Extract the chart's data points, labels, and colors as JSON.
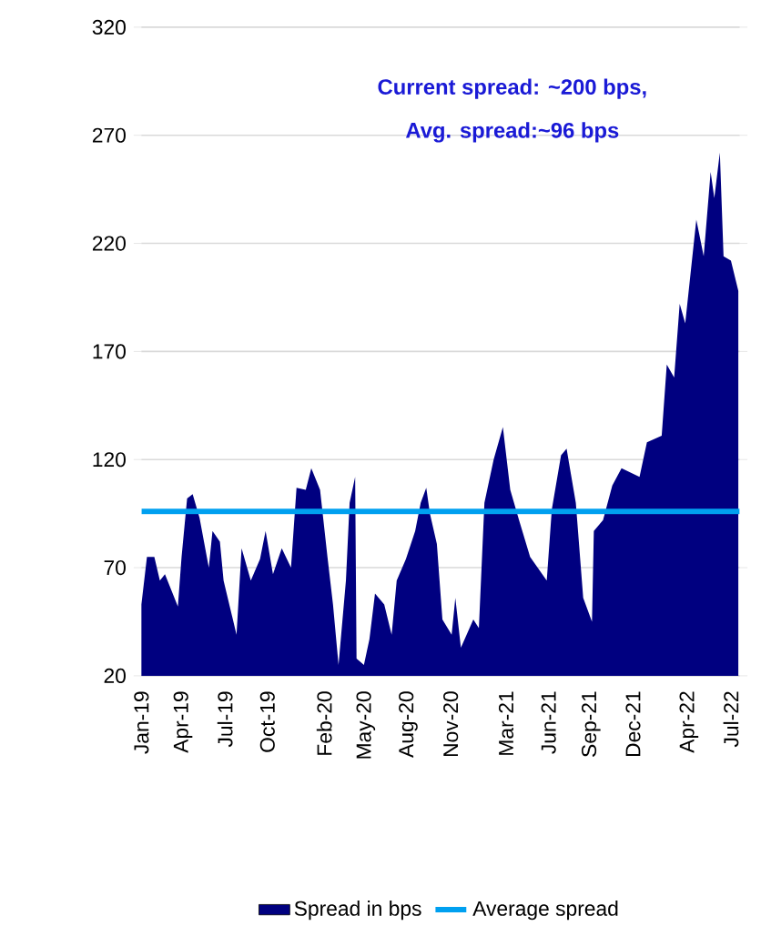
{
  "chart_data": {
    "type": "area",
    "x": [
      "2019-01-01",
      "2019-01-13",
      "2019-01-29",
      "2019-02-10",
      "2019-02-21",
      "2019-03-21",
      "2019-03-29",
      "2019-04-10",
      "2019-04-22",
      "2019-05-07",
      "2019-05-27",
      "2019-06-04",
      "2019-06-20",
      "2019-06-28",
      "2019-07-26",
      "2019-08-06",
      "2019-08-26",
      "2019-09-15",
      "2019-09-27",
      "2019-10-13",
      "2019-11-01",
      "2019-11-21",
      "2019-12-03",
      "2019-12-23",
      "2020-01-04",
      "2020-01-23",
      "2020-02-08",
      "2020-02-20",
      "2020-03-03",
      "2020-03-19",
      "2020-03-27",
      "2020-04-08",
      "2020-04-11",
      "2020-04-27",
      "2020-05-09",
      "2020-05-21",
      "2020-06-10",
      "2020-06-26",
      "2020-07-07",
      "2020-07-27",
      "2020-08-16",
      "2020-08-28",
      "2020-09-09",
      "2020-09-17",
      "2020-10-02",
      "2020-10-14",
      "2020-11-03",
      "2020-11-11",
      "2020-11-23",
      "2020-12-20",
      "2021-01-01",
      "2021-01-13",
      "2021-02-02",
      "2021-02-22",
      "2021-03-10",
      "2021-03-29",
      "2021-04-22",
      "2021-05-28",
      "2021-06-08",
      "2021-06-28",
      "2021-07-10",
      "2021-07-30",
      "2021-08-15",
      "2021-09-03",
      "2021-09-07",
      "2021-09-27",
      "2021-10-17",
      "2021-11-06",
      "2021-12-15",
      "2021-12-31",
      "2022-02-01",
      "2022-02-12",
      "2022-02-28",
      "2022-03-12",
      "2022-03-24",
      "2022-04-17",
      "2022-05-03",
      "2022-05-18",
      "2022-05-26",
      "2022-06-07",
      "2022-06-15",
      "2022-07-01",
      "2022-07-17"
    ],
    "series": [
      {
        "name": "Spread in bps",
        "color": "#000080",
        "values": [
          53,
          75,
          75,
          64,
          67,
          52,
          75,
          102,
          104,
          93,
          70,
          87,
          82,
          64,
          39,
          79,
          64,
          74,
          87,
          67,
          79,
          70,
          107,
          106,
          116,
          106,
          75,
          53,
          25,
          64,
          100,
          112,
          28,
          25,
          37,
          58,
          53,
          39,
          64,
          74,
          87,
          100,
          107,
          95,
          81,
          46,
          39,
          56,
          33,
          46,
          42,
          100,
          120,
          135,
          106,
          92,
          75,
          64,
          97,
          122,
          125,
          100,
          56,
          45,
          87,
          92,
          108,
          116,
          112,
          128,
          131,
          164,
          158,
          192,
          183,
          231,
          214,
          253,
          241,
          262,
          214,
          212,
          198
        ]
      }
    ],
    "xlim": [
      "2019-01-01",
      "2022-07-20"
    ],
    "xticks": [
      {
        "value": "2019-01-01",
        "label": "Jan-19"
      },
      {
        "value": "2019-04-01",
        "label": "Apr-19"
      },
      {
        "value": "2019-07-01",
        "label": "Jul-19"
      },
      {
        "value": "2019-10-01",
        "label": "Oct-19"
      },
      {
        "value": "2020-02-01",
        "label": "Feb-20"
      },
      {
        "value": "2020-05-01",
        "label": "May-20"
      },
      {
        "value": "2020-08-01",
        "label": "Aug-20"
      },
      {
        "value": "2020-11-01",
        "label": "Nov-20"
      },
      {
        "value": "2021-03-01",
        "label": "Mar-21"
      },
      {
        "value": "2021-06-01",
        "label": "Jun-21"
      },
      {
        "value": "2021-09-01",
        "label": "Sep-21"
      },
      {
        "value": "2021-12-01",
        "label": "Dec-21"
      },
      {
        "value": "2022-04-01",
        "label": "Apr-22"
      },
      {
        "value": "2022-07-01",
        "label": "Jul-22"
      }
    ],
    "ylim": [
      20,
      320
    ],
    "yticks": [
      20,
      70,
      120,
      170,
      220,
      270,
      320
    ],
    "grid": "y",
    "legend": "bottom",
    "ref_lines": [
      {
        "axis": "y",
        "value": 96,
        "label": "Average spread",
        "color": "#00a0f0"
      }
    ],
    "annotations": [
      "Current spread: ~200 bps,",
      "Avg. spread:~96 bps"
    ]
  }
}
